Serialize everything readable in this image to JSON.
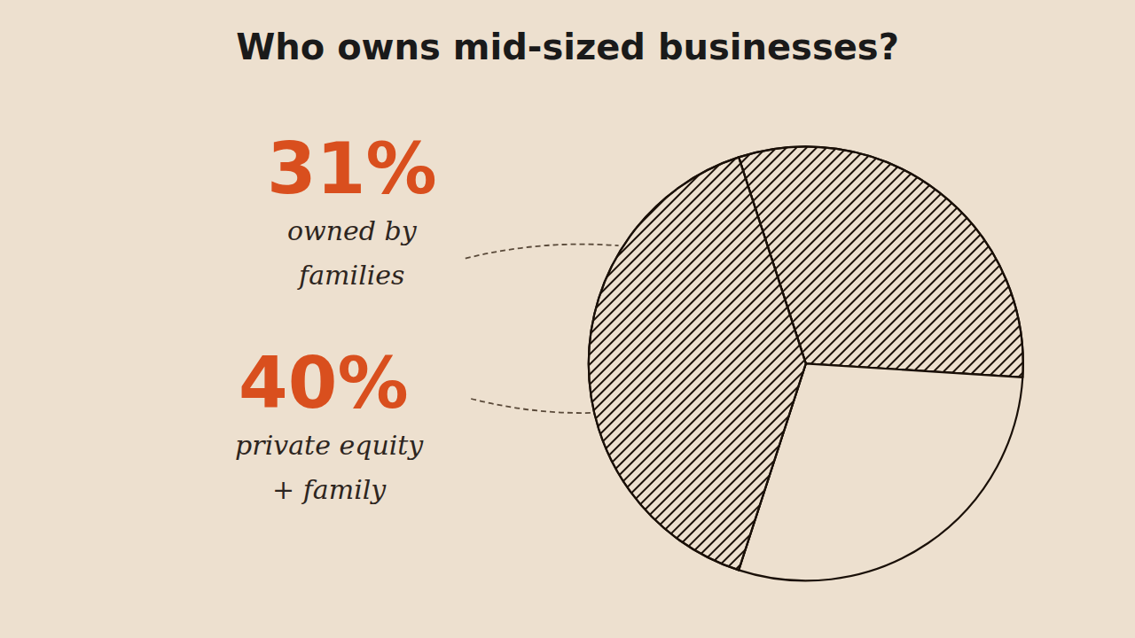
{
  "chart_data": {
    "type": "pie",
    "title": "Who owns mid-sized businesses?",
    "values": [
      31,
      29,
      40
    ],
    "colors": [
      "#ede0cf",
      "#ede0cf",
      "#ede0cf"
    ],
    "annotations": [
      {
        "text": "31%",
        "note": [
          "owned by",
          "families"
        ]
      },
      {
        "text": "40%",
        "note": [
          "private equity",
          "+ family"
        ]
      }
    ]
  }
}
